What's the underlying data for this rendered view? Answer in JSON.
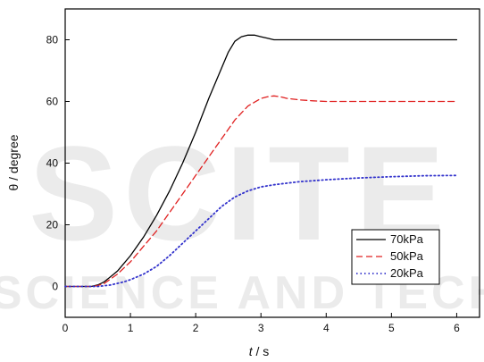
{
  "chart_data": {
    "type": "line",
    "title": "",
    "xlabel_var": "t",
    "xlabel_unit": " / s",
    "ylabel": "θ / degree",
    "xlim": [
      0,
      6.35
    ],
    "ylim": [
      -10,
      90
    ],
    "xticks": [
      0,
      1,
      2,
      3,
      4,
      5,
      6
    ],
    "yticks": [
      0,
      20,
      40,
      60,
      80
    ],
    "grid": false,
    "legend_position": "bottom-right",
    "series": [
      {
        "name": "70kPa",
        "color": "#000000",
        "dash": "solid",
        "x": [
          0,
          0.4,
          0.5,
          0.6,
          0.8,
          1.0,
          1.2,
          1.4,
          1.6,
          1.8,
          2.0,
          2.2,
          2.4,
          2.5,
          2.6,
          2.7,
          2.8,
          2.9,
          3.0,
          3.1,
          3.2,
          3.4,
          3.6,
          4.0,
          5.0,
          6.0
        ],
        "values": [
          0,
          0,
          0.5,
          1.5,
          5,
          10,
          16,
          23,
          31,
          40,
          50,
          61,
          71,
          76,
          79.5,
          81,
          81.5,
          81.5,
          81,
          80.5,
          80,
          80,
          80,
          80,
          80,
          80
        ]
      },
      {
        "name": "50kPa",
        "color": "#e02020",
        "dash": "dashed",
        "x": [
          0,
          0.4,
          0.5,
          0.6,
          0.8,
          1.0,
          1.2,
          1.4,
          1.6,
          1.8,
          2.0,
          2.2,
          2.4,
          2.6,
          2.8,
          3.0,
          3.1,
          3.2,
          3.3,
          3.4,
          3.6,
          3.8,
          4.0,
          5.0,
          6.0
        ],
        "values": [
          0,
          0,
          0.3,
          1,
          4,
          8,
          13,
          18,
          24,
          30,
          36,
          42,
          48,
          54,
          58.5,
          61,
          61.5,
          61.8,
          61.5,
          61,
          60.5,
          60.2,
          60,
          60,
          60
        ]
      },
      {
        "name": "20kPa",
        "color": "#3333cc",
        "dash": "dotted",
        "x": [
          0,
          0.5,
          0.7,
          0.9,
          1.0,
          1.2,
          1.4,
          1.6,
          1.8,
          2.0,
          2.2,
          2.4,
          2.6,
          2.8,
          3.0,
          3.2,
          3.4,
          3.6,
          3.8,
          4.0,
          4.5,
          5.0,
          5.5,
          6.0
        ],
        "values": [
          0,
          0,
          0.5,
          1.5,
          2.2,
          4,
          6.5,
          10,
          14,
          18,
          22,
          26,
          29,
          31,
          32.3,
          33,
          33.5,
          34,
          34.3,
          34.6,
          35.2,
          35.6,
          35.9,
          36
        ]
      }
    ]
  },
  "watermark": {
    "main": "SCITE",
    "sub": "SCIENCE AND TECH"
  }
}
